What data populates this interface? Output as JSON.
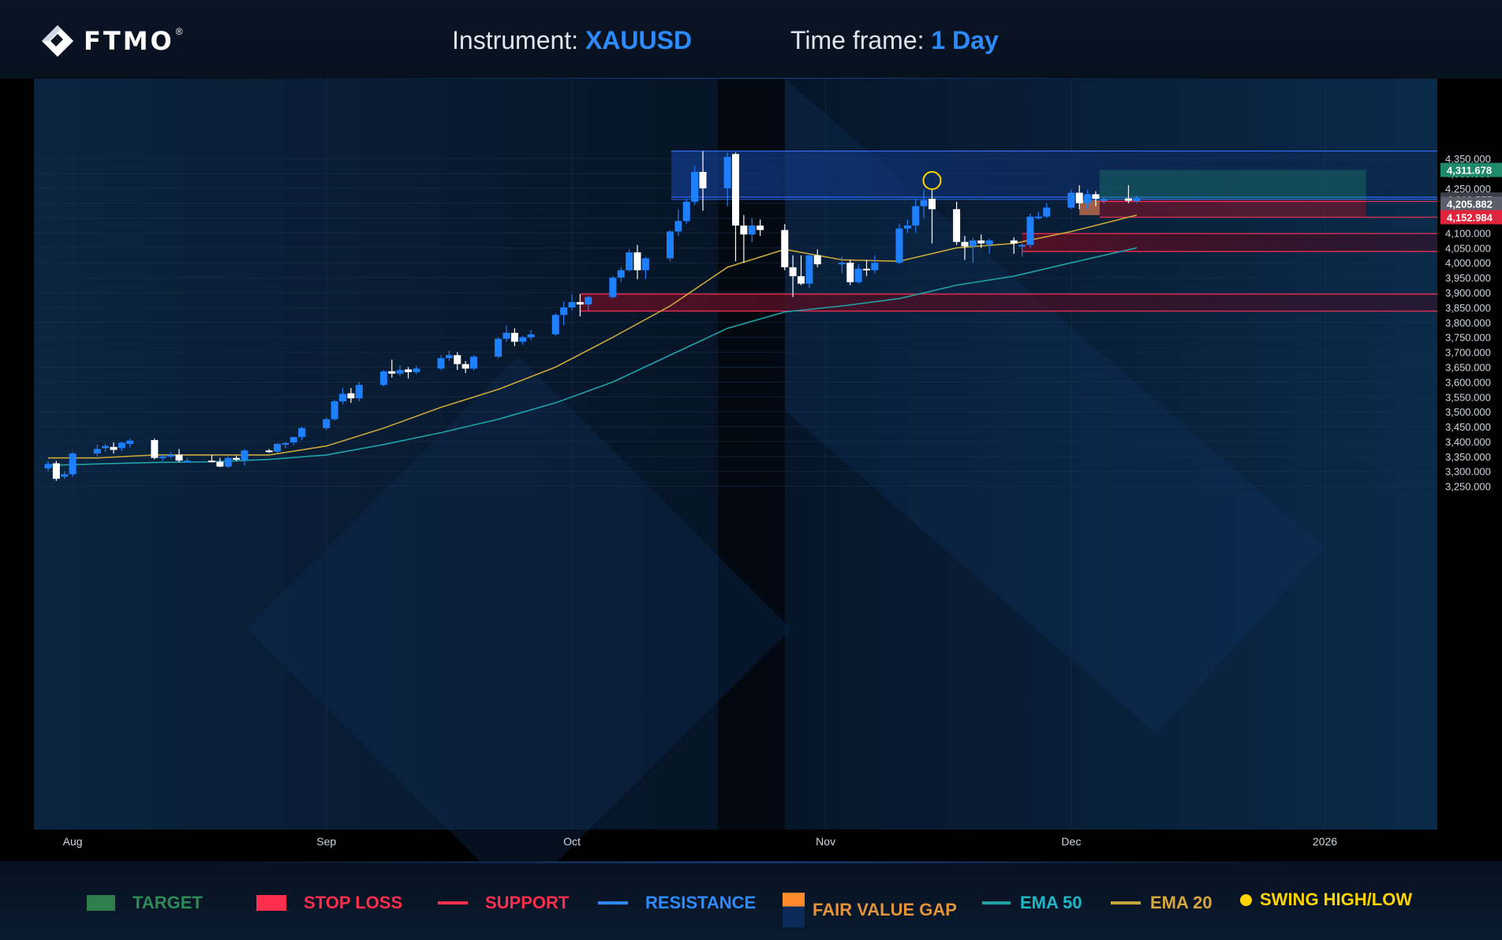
{
  "header": {
    "logo_text": "FTMO",
    "logo_mark": "®",
    "instrument_label": "Instrument:",
    "instrument_value": "XAUUSD",
    "timeframe_label": "Time frame:",
    "timeframe_value": "1 Day"
  },
  "legend": [
    {
      "label": "TARGET",
      "color": "#2ea043",
      "text_color": "#2ea043",
      "icon": "target-swatch"
    },
    {
      "label": "STOP LOSS",
      "color": "#ff2e4c",
      "text_color": "#ff2e4c",
      "icon": "stop-loss-swatch"
    },
    {
      "label": "SUPPORT",
      "color": "#ff2e4c",
      "text_color": "#ff2e4c",
      "icon": "support-line"
    },
    {
      "label": "RESISTANCE",
      "color": "#2b8bff",
      "text_color": "#2b8bff",
      "icon": "resistance-line"
    },
    {
      "label": "FAIR VALUE GAP",
      "color": "#ff8a2b",
      "text_color": "#e3933a",
      "icon": "fair-value-gap-swatch"
    },
    {
      "label": "EMA 50",
      "color": "#1fa2a8",
      "text_color": "#1fb8c8",
      "icon": "ema50-line"
    },
    {
      "label": "EMA 20",
      "color": "#c9a83a",
      "text_color": "#d6a640",
      "icon": "ema20-line"
    },
    {
      "label": "SWING HIGH/LOW",
      "color": "#ffd400",
      "text_color": "#ffd400",
      "icon": "swing-dot"
    }
  ],
  "chart_data": {
    "type": "candlestick",
    "instrument": "XAUUSD",
    "timeframe": "1 Day",
    "ylim": [
      3225,
      4375
    ],
    "y_ticks": [
      3250,
      3300,
      3350,
      3400,
      3450,
      3500,
      3550,
      3600,
      3650,
      3700,
      3750,
      3800,
      3850,
      3900,
      3950,
      4000,
      4050,
      4100,
      4150,
      4200,
      4250,
      4300,
      4350
    ],
    "y_tick_labels": [
      "3,250.000",
      "3,300.000",
      "3,350.000",
      "3,400.000",
      "3,450.000",
      "3,500.000",
      "3,550.000",
      "3,600.000",
      "3,650.000",
      "3,700.000",
      "3,750.000",
      "3,800.000",
      "3,850.000",
      "3,900.000",
      "3,950.000",
      "4,000.000",
      "4,050.000",
      "4,100.000",
      "4,150.000",
      "4,200.000",
      "4,250.000",
      "4,300.000",
      "4,350.000"
    ],
    "x_labels": [
      {
        "label": "Aug",
        "date": "2025-08-01"
      },
      {
        "label": "Sep",
        "date": "2025-09-01"
      },
      {
        "label": "Oct",
        "date": "2025-10-01"
      },
      {
        "label": "Nov",
        "date": "2025-11-01"
      },
      {
        "label": "Dec",
        "date": "2025-12-01"
      },
      {
        "label": "2026",
        "date": "2026-01-01"
      }
    ],
    "colors": {
      "bull": "#1e7fff",
      "bear": "#ffffff",
      "target": "#1f8a6a",
      "stop": "#7a1020",
      "support_fill": "#4a0f22",
      "support_line": "#ff3355",
      "resistance_fill": "#0f3f9a",
      "resistance_line": "#2f6fff",
      "fvg": "#c0704a",
      "ema20": "#c9a83a",
      "ema50": "#1fa2a8",
      "swing": "#ffd400"
    },
    "candles": [
      {
        "date": "2025-07-29",
        "o": 3310,
        "h": 3335,
        "l": 3300,
        "c": 3325
      },
      {
        "date": "2025-07-30",
        "o": 3327,
        "h": 3335,
        "l": 3268,
        "c": 3275
      },
      {
        "date": "2025-07-31",
        "o": 3282,
        "h": 3300,
        "l": 3275,
        "c": 3290
      },
      {
        "date": "2025-08-01",
        "o": 3290,
        "h": 3365,
        "l": 3282,
        "c": 3360
      },
      {
        "date": "2025-08-04",
        "o": 3360,
        "h": 3390,
        "l": 3350,
        "c": 3375
      },
      {
        "date": "2025-08-05",
        "o": 3378,
        "h": 3392,
        "l": 3365,
        "c": 3385
      },
      {
        "date": "2025-08-06",
        "o": 3382,
        "h": 3397,
        "l": 3360,
        "c": 3372
      },
      {
        "date": "2025-08-07",
        "o": 3378,
        "h": 3400,
        "l": 3368,
        "c": 3396
      },
      {
        "date": "2025-08-08",
        "o": 3392,
        "h": 3410,
        "l": 3380,
        "c": 3403
      },
      {
        "date": "2025-08-11",
        "o": 3405,
        "h": 3410,
        "l": 3340,
        "c": 3345
      },
      {
        "date": "2025-08-12",
        "o": 3345,
        "h": 3355,
        "l": 3335,
        "c": 3350
      },
      {
        "date": "2025-08-13",
        "o": 3350,
        "h": 3365,
        "l": 3345,
        "c": 3355
      },
      {
        "date": "2025-08-14",
        "o": 3356,
        "h": 3375,
        "l": 3330,
        "c": 3336
      },
      {
        "date": "2025-08-15",
        "o": 3336,
        "h": 3345,
        "l": 3330,
        "c": 3336
      },
      {
        "date": "2025-08-18",
        "o": 3336,
        "h": 3356,
        "l": 3330,
        "c": 3332
      },
      {
        "date": "2025-08-19",
        "o": 3332,
        "h": 3345,
        "l": 3314,
        "c": 3316
      },
      {
        "date": "2025-08-20",
        "o": 3316,
        "h": 3350,
        "l": 3311,
        "c": 3345
      },
      {
        "date": "2025-08-21",
        "o": 3345,
        "h": 3352,
        "l": 3335,
        "c": 3339
      },
      {
        "date": "2025-08-22",
        "o": 3338,
        "h": 3375,
        "l": 3320,
        "c": 3370
      },
      {
        "date": "2025-08-25",
        "o": 3370,
        "h": 3375,
        "l": 3362,
        "c": 3366
      },
      {
        "date": "2025-08-26",
        "o": 3366,
        "h": 3395,
        "l": 3360,
        "c": 3392
      },
      {
        "date": "2025-08-27",
        "o": 3391,
        "h": 3398,
        "l": 3378,
        "c": 3395
      },
      {
        "date": "2025-08-28",
        "o": 3397,
        "h": 3415,
        "l": 3388,
        "c": 3415
      },
      {
        "date": "2025-08-29",
        "o": 3415,
        "h": 3450,
        "l": 3405,
        "c": 3445
      },
      {
        "date": "2025-09-01",
        "o": 3445,
        "h": 3480,
        "l": 3438,
        "c": 3475
      },
      {
        "date": "2025-09-02",
        "o": 3475,
        "h": 3540,
        "l": 3470,
        "c": 3535
      },
      {
        "date": "2025-09-03",
        "o": 3535,
        "h": 3580,
        "l": 3525,
        "c": 3560
      },
      {
        "date": "2025-09-04",
        "o": 3562,
        "h": 3580,
        "l": 3530,
        "c": 3545
      },
      {
        "date": "2025-09-05",
        "o": 3545,
        "h": 3600,
        "l": 3535,
        "c": 3590
      },
      {
        "date": "2025-09-08",
        "o": 3590,
        "h": 3640,
        "l": 3585,
        "c": 3635
      },
      {
        "date": "2025-09-09",
        "o": 3636,
        "h": 3675,
        "l": 3615,
        "c": 3628
      },
      {
        "date": "2025-09-10",
        "o": 3628,
        "h": 3655,
        "l": 3620,
        "c": 3640
      },
      {
        "date": "2025-09-11",
        "o": 3642,
        "h": 3650,
        "l": 3612,
        "c": 3633
      },
      {
        "date": "2025-09-12",
        "o": 3633,
        "h": 3655,
        "l": 3625,
        "c": 3645
      },
      {
        "date": "2025-09-15",
        "o": 3645,
        "h": 3690,
        "l": 3640,
        "c": 3680
      },
      {
        "date": "2025-09-16",
        "o": 3680,
        "h": 3705,
        "l": 3670,
        "c": 3690
      },
      {
        "date": "2025-09-17",
        "o": 3690,
        "h": 3700,
        "l": 3640,
        "c": 3660
      },
      {
        "date": "2025-09-18",
        "o": 3660,
        "h": 3670,
        "l": 3630,
        "c": 3645
      },
      {
        "date": "2025-09-19",
        "o": 3645,
        "h": 3690,
        "l": 3640,
        "c": 3685
      },
      {
        "date": "2025-09-22",
        "o": 3685,
        "h": 3750,
        "l": 3680,
        "c": 3745
      },
      {
        "date": "2025-09-23",
        "o": 3745,
        "h": 3790,
        "l": 3735,
        "c": 3765
      },
      {
        "date": "2025-09-24",
        "o": 3765,
        "h": 3780,
        "l": 3720,
        "c": 3735
      },
      {
        "date": "2025-09-25",
        "o": 3735,
        "h": 3755,
        "l": 3725,
        "c": 3750
      },
      {
        "date": "2025-09-26",
        "o": 3750,
        "h": 3775,
        "l": 3740,
        "c": 3760
      },
      {
        "date": "2025-09-29",
        "o": 3760,
        "h": 3830,
        "l": 3755,
        "c": 3825
      },
      {
        "date": "2025-09-30",
        "o": 3825,
        "h": 3870,
        "l": 3790,
        "c": 3850
      },
      {
        "date": "2025-10-01",
        "o": 3850,
        "h": 3895,
        "l": 3840,
        "c": 3868
      },
      {
        "date": "2025-10-02",
        "o": 3868,
        "h": 3895,
        "l": 3820,
        "c": 3860
      },
      {
        "date": "2025-10-03",
        "o": 3860,
        "h": 3890,
        "l": 3840,
        "c": 3885
      },
      {
        "date": "2025-10-06",
        "o": 3885,
        "h": 3955,
        "l": 3880,
        "c": 3950
      },
      {
        "date": "2025-10-07",
        "o": 3950,
        "h": 3985,
        "l": 3935,
        "c": 3975
      },
      {
        "date": "2025-10-08",
        "o": 3975,
        "h": 4045,
        "l": 3970,
        "c": 4035
      },
      {
        "date": "2025-10-09",
        "o": 4035,
        "h": 4060,
        "l": 3945,
        "c": 3975
      },
      {
        "date": "2025-10-10",
        "o": 3975,
        "h": 4020,
        "l": 3945,
        "c": 4015
      },
      {
        "date": "2025-10-13",
        "o": 4015,
        "h": 4110,
        "l": 4005,
        "c": 4105
      },
      {
        "date": "2025-10-14",
        "o": 4105,
        "h": 4180,
        "l": 4090,
        "c": 4140
      },
      {
        "date": "2025-10-15",
        "o": 4140,
        "h": 4215,
        "l": 4130,
        "c": 4205
      },
      {
        "date": "2025-10-16",
        "o": 4205,
        "h": 4325,
        "l": 4195,
        "c": 4305
      },
      {
        "date": "2025-10-17",
        "o": 4305,
        "h": 4375,
        "l": 4175,
        "c": 4250
      },
      {
        "date": "2025-10-20",
        "o": 4250,
        "h": 4370,
        "l": 4190,
        "c": 4355
      },
      {
        "date": "2025-10-21",
        "o": 4365,
        "h": 4370,
        "l": 4005,
        "c": 4125
      },
      {
        "date": "2025-10-22",
        "o": 4125,
        "h": 4160,
        "l": 4000,
        "c": 4095
      },
      {
        "date": "2025-10-23",
        "o": 4095,
        "h": 4150,
        "l": 4070,
        "c": 4125
      },
      {
        "date": "2025-10-24",
        "o": 4125,
        "h": 4145,
        "l": 4090,
        "c": 4110
      },
      {
        "date": "2025-10-27",
        "o": 4110,
        "h": 4130,
        "l": 3975,
        "c": 3985
      },
      {
        "date": "2025-10-28",
        "o": 3985,
        "h": 4025,
        "l": 3885,
        "c": 3955
      },
      {
        "date": "2025-10-29",
        "o": 3955,
        "h": 4025,
        "l": 3925,
        "c": 3930
      },
      {
        "date": "2025-10-30",
        "o": 3930,
        "h": 4030,
        "l": 3915,
        "c": 4025
      },
      {
        "date": "2025-10-31",
        "o": 4025,
        "h": 4045,
        "l": 3985,
        "c": 3995
      },
      {
        "date": "2025-11-03",
        "o": 3995,
        "h": 4020,
        "l": 3965,
        "c": 4000
      },
      {
        "date": "2025-11-04",
        "o": 4000,
        "h": 4010,
        "l": 3925,
        "c": 3935
      },
      {
        "date": "2025-11-05",
        "o": 3935,
        "h": 3995,
        "l": 3930,
        "c": 3980
      },
      {
        "date": "2025-11-06",
        "o": 3980,
        "h": 4010,
        "l": 3955,
        "c": 3975
      },
      {
        "date": "2025-11-07",
        "o": 3975,
        "h": 4025,
        "l": 3965,
        "c": 4000
      },
      {
        "date": "2025-11-10",
        "o": 4000,
        "h": 4130,
        "l": 3995,
        "c": 4115
      },
      {
        "date": "2025-11-11",
        "o": 4115,
        "h": 4145,
        "l": 4100,
        "c": 4125
      },
      {
        "date": "2025-11-12",
        "o": 4125,
        "h": 4215,
        "l": 4100,
        "c": 4190
      },
      {
        "date": "2025-11-13",
        "o": 4190,
        "h": 4245,
        "l": 4150,
        "c": 4210
      },
      {
        "date": "2025-11-14",
        "o": 4215,
        "h": 4245,
        "l": 4065,
        "c": 4180
      },
      {
        "date": "2025-11-17",
        "o": 4180,
        "h": 4205,
        "l": 4060,
        "c": 4070
      },
      {
        "date": "2025-11-18",
        "o": 4070,
        "h": 4090,
        "l": 4010,
        "c": 4055
      },
      {
        "date": "2025-11-19",
        "o": 4055,
        "h": 4085,
        "l": 4000,
        "c": 4075
      },
      {
        "date": "2025-11-20",
        "o": 4075,
        "h": 4095,
        "l": 4050,
        "c": 4065
      },
      {
        "date": "2025-11-21",
        "o": 4062,
        "h": 4080,
        "l": 4030,
        "c": 4075
      },
      {
        "date": "2025-11-24",
        "o": 4075,
        "h": 4085,
        "l": 4030,
        "c": 4065
      },
      {
        "date": "2025-11-25",
        "o": 4060,
        "h": 4065,
        "l": 4020,
        "c": 4060
      },
      {
        "date": "2025-11-26",
        "o": 4060,
        "h": 4165,
        "l": 4050,
        "c": 4155
      },
      {
        "date": "2025-11-27",
        "o": 4155,
        "h": 4170,
        "l": 4145,
        "c": 4155
      },
      {
        "date": "2025-11-28",
        "o": 4155,
        "h": 4200,
        "l": 4150,
        "c": 4185
      },
      {
        "date": "2025-12-01",
        "o": 4185,
        "h": 4245,
        "l": 4180,
        "c": 4235
      },
      {
        "date": "2025-12-02",
        "o": 4235,
        "h": 4260,
        "l": 4180,
        "c": 4200
      },
      {
        "date": "2025-12-03",
        "o": 4200,
        "h": 4245,
        "l": 4180,
        "c": 4230
      },
      {
        "date": "2025-12-04",
        "o": 4230,
        "h": 4240,
        "l": 4190,
        "c": 4215
      },
      {
        "date": "2025-12-05",
        "o": 4210,
        "h": 4218,
        "l": 4198,
        "c": 4213
      },
      {
        "date": "2025-12-08",
        "o": 4216,
        "h": 4260,
        "l": 4200,
        "c": 4208
      },
      {
        "date": "2025-12-09",
        "o": 4207,
        "h": 4225,
        "l": 4200,
        "c": 4217
      }
    ],
    "ema20": [
      {
        "date": "2025-07-29",
        "v": 3345
      },
      {
        "date": "2025-08-04",
        "v": 3345
      },
      {
        "date": "2025-08-11",
        "v": 3355
      },
      {
        "date": "2025-08-18",
        "v": 3355
      },
      {
        "date": "2025-08-25",
        "v": 3355
      },
      {
        "date": "2025-09-01",
        "v": 3385
      },
      {
        "date": "2025-09-08",
        "v": 3445
      },
      {
        "date": "2025-09-15",
        "v": 3515
      },
      {
        "date": "2025-09-22",
        "v": 3575
      },
      {
        "date": "2025-09-29",
        "v": 3650
      },
      {
        "date": "2025-10-06",
        "v": 3750
      },
      {
        "date": "2025-10-13",
        "v": 3855
      },
      {
        "date": "2025-10-20",
        "v": 3985
      },
      {
        "date": "2025-10-27",
        "v": 4045
      },
      {
        "date": "2025-11-03",
        "v": 4010
      },
      {
        "date": "2025-11-10",
        "v": 4005
      },
      {
        "date": "2025-11-17",
        "v": 4050
      },
      {
        "date": "2025-11-24",
        "v": 4065
      },
      {
        "date": "2025-12-01",
        "v": 4105
      },
      {
        "date": "2025-12-09",
        "v": 4160
      }
    ],
    "ema50": [
      {
        "date": "2025-07-29",
        "v": 3320
      },
      {
        "date": "2025-08-04",
        "v": 3325
      },
      {
        "date": "2025-08-11",
        "v": 3330
      },
      {
        "date": "2025-08-18",
        "v": 3332
      },
      {
        "date": "2025-08-25",
        "v": 3340
      },
      {
        "date": "2025-09-01",
        "v": 3355
      },
      {
        "date": "2025-09-08",
        "v": 3390
      },
      {
        "date": "2025-09-15",
        "v": 3430
      },
      {
        "date": "2025-09-22",
        "v": 3475
      },
      {
        "date": "2025-09-29",
        "v": 3530
      },
      {
        "date": "2025-10-06",
        "v": 3600
      },
      {
        "date": "2025-10-13",
        "v": 3690
      },
      {
        "date": "2025-10-20",
        "v": 3780
      },
      {
        "date": "2025-10-27",
        "v": 3835
      },
      {
        "date": "2025-11-03",
        "v": 3855
      },
      {
        "date": "2025-11-10",
        "v": 3880
      },
      {
        "date": "2025-11-17",
        "v": 3925
      },
      {
        "date": "2025-11-24",
        "v": 3955
      },
      {
        "date": "2025-12-01",
        "v": 4000
      },
      {
        "date": "2025-12-09",
        "v": 4050
      }
    ],
    "zones": [
      {
        "kind": "resistance",
        "from": "2025-10-17",
        "to": "2026-02-12",
        "top": 4375,
        "bottom": 4220
      },
      {
        "kind": "support",
        "from": "2025-11-25",
        "to": "2026-02-12",
        "top": 4098,
        "bottom": 4038
      },
      {
        "kind": "support",
        "from": "2025-10-02",
        "to": "2026-02-12",
        "top": 3895,
        "bottom": 3838
      },
      {
        "kind": "fair_value_gap",
        "from": "2025-12-02",
        "to": "2025-12-04",
        "top": 4210,
        "bottom": 4160
      }
    ],
    "trade": {
      "entry": 4212.555,
      "target": 4311.678,
      "stop": 4152.984,
      "level": 4205.882,
      "from": "2025-12-04",
      "to": "2026-01-06"
    },
    "price_labels": [
      {
        "value": 4311.678,
        "text": "4,311.678",
        "bg": "#1f8a6a"
      },
      {
        "value": 4212.555,
        "text": "4,212.555",
        "bg": "#3a3f4a"
      },
      {
        "value": 4205.882,
        "text": "4,205.882",
        "bg": "#5a5f6a"
      },
      {
        "value": 4152.984,
        "text": "4,152.984",
        "bg": "#e0243c"
      }
    ],
    "swing": {
      "date": "2025-11-14",
      "value": 4255
    },
    "grid": true
  }
}
